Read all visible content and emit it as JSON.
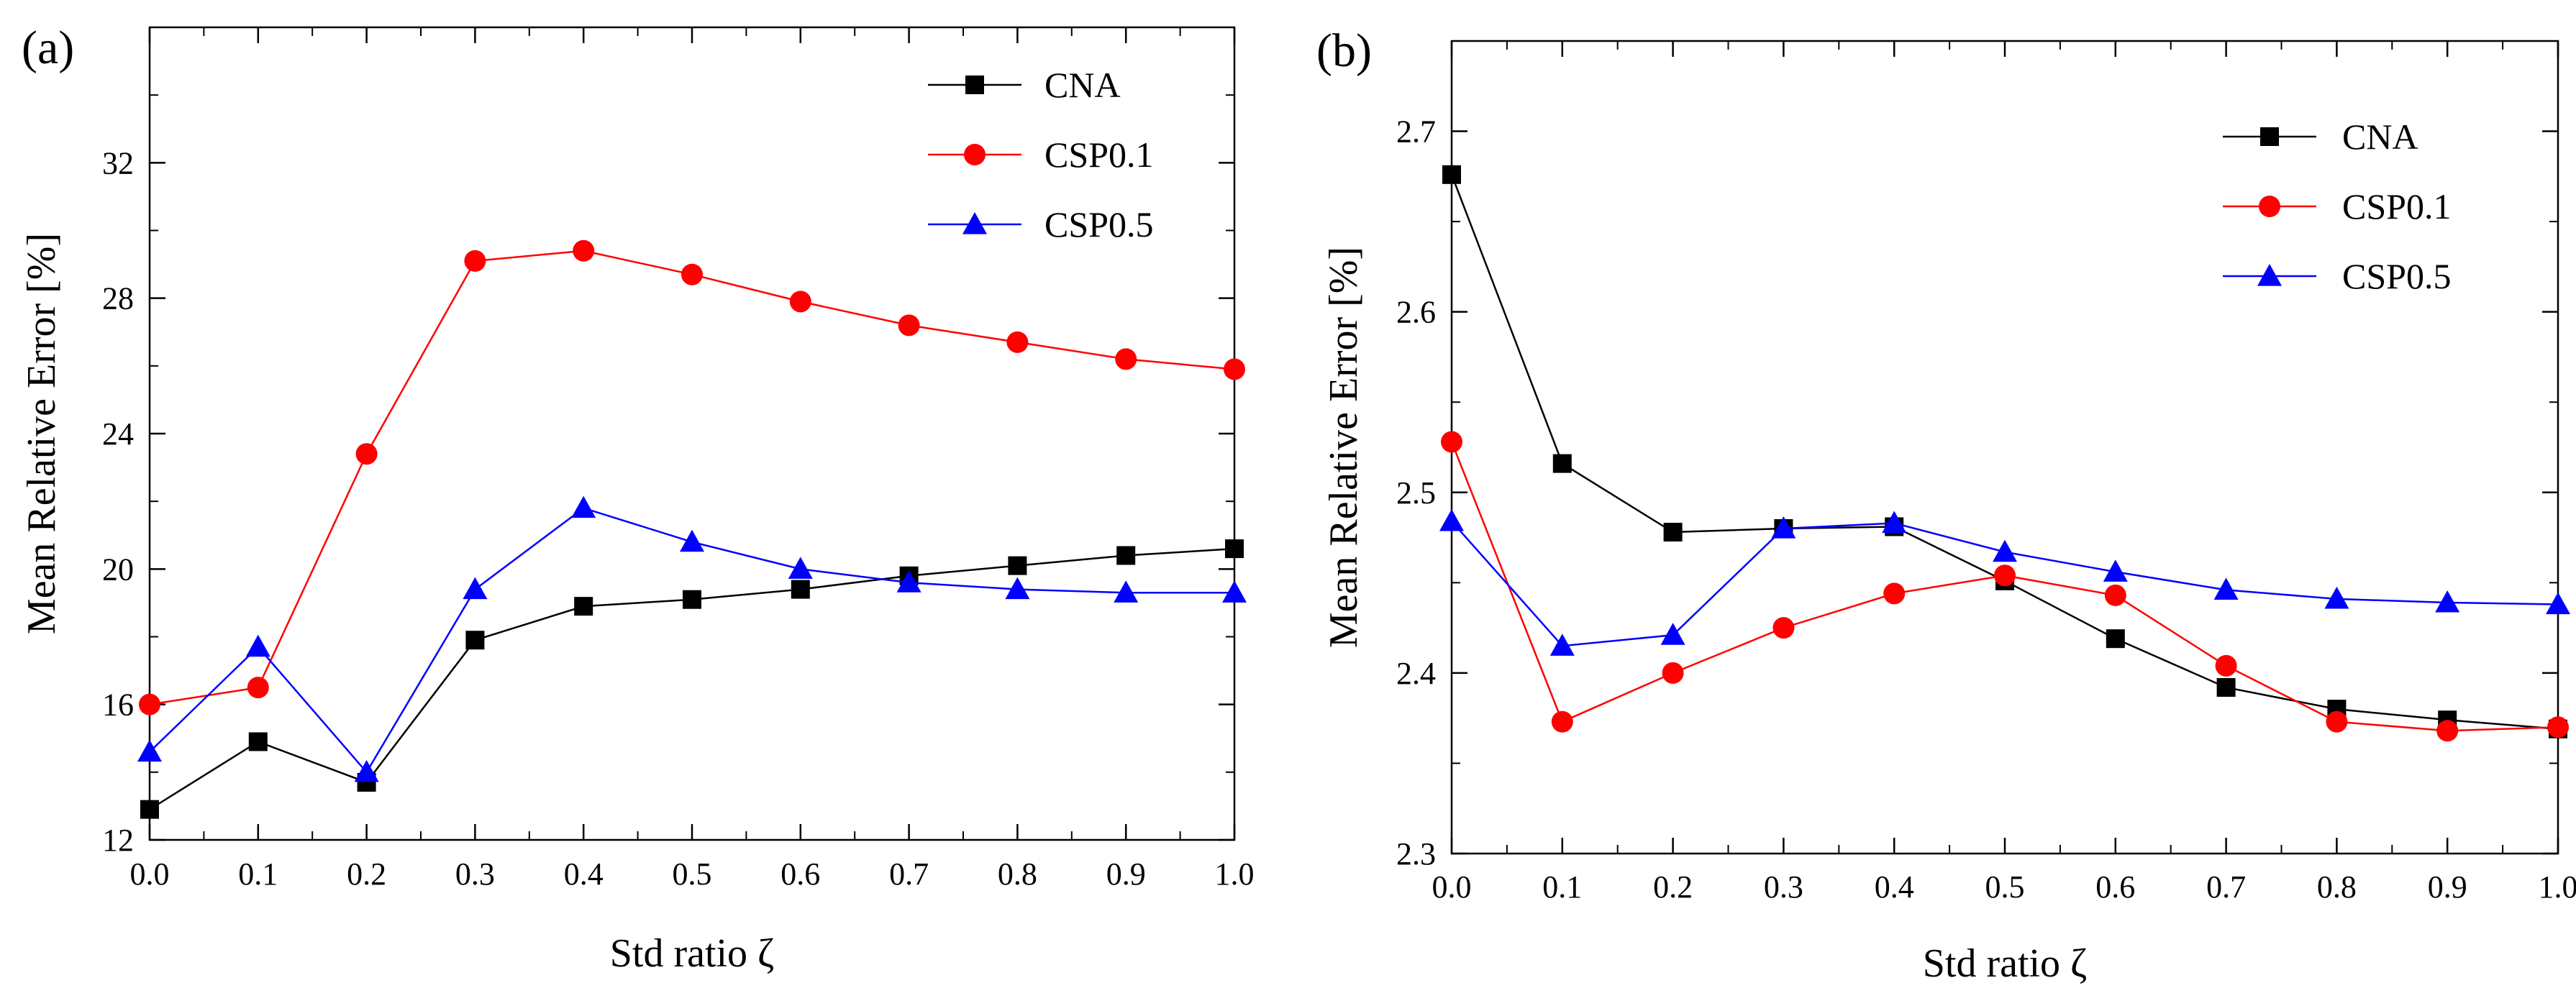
{
  "chart_data": [
    {
      "type": "line",
      "panel_label": "(a)",
      "xlabel": "Std ratio ζ",
      "ylabel": "Mean Relative Error [%]",
      "xlim": [
        0.0,
        1.0
      ],
      "ylim": [
        12,
        36
      ],
      "xticks": [
        0.0,
        0.1,
        0.2,
        0.3,
        0.4,
        0.5,
        0.6,
        0.7,
        0.8,
        0.9,
        1.0
      ],
      "xtick_labels": [
        "0.0",
        "0.1",
        "0.2",
        "0.3",
        "0.4",
        "0.5",
        "0.6",
        "0.7",
        "0.8",
        "0.9",
        "1.0"
      ],
      "yticks": [
        12,
        16,
        20,
        24,
        28,
        32
      ],
      "ytick_labels": [
        "12",
        "16",
        "20",
        "24",
        "28",
        "32"
      ],
      "legend_position": "top-right",
      "x": [
        0.0,
        0.1,
        0.2,
        0.3,
        0.4,
        0.5,
        0.6,
        0.7,
        0.8,
        0.9,
        1.0
      ],
      "series": [
        {
          "name": "CNA",
          "color": "#000000",
          "marker": "square",
          "values": [
            12.9,
            14.9,
            13.7,
            17.9,
            18.9,
            19.1,
            19.4,
            19.8,
            20.1,
            20.4,
            20.6
          ]
        },
        {
          "name": "CSP0.1",
          "color": "#ff0000",
          "marker": "circle",
          "values": [
            16.0,
            16.5,
            23.4,
            29.1,
            29.4,
            28.7,
            27.9,
            27.2,
            26.7,
            26.2,
            25.9
          ]
        },
        {
          "name": "CSP0.5",
          "color": "#0000ff",
          "marker": "triangle",
          "values": [
            14.6,
            17.7,
            14.0,
            19.4,
            21.8,
            20.8,
            20.0,
            19.6,
            19.4,
            19.3,
            19.3
          ]
        }
      ]
    },
    {
      "type": "line",
      "panel_label": "(b)",
      "xlabel": "Std ratio ζ",
      "ylabel": "Mean Relative Error [%]",
      "xlim": [
        0.0,
        1.0
      ],
      "ylim": [
        2.3,
        2.75
      ],
      "xticks": [
        0.0,
        0.1,
        0.2,
        0.3,
        0.4,
        0.5,
        0.6,
        0.7,
        0.8,
        0.9,
        1.0
      ],
      "xtick_labels": [
        "0.0",
        "0.1",
        "0.2",
        "0.3",
        "0.4",
        "0.5",
        "0.6",
        "0.7",
        "0.8",
        "0.9",
        "1.0"
      ],
      "yticks": [
        2.3,
        2.4,
        2.5,
        2.6,
        2.7
      ],
      "ytick_labels": [
        "2.3",
        "2.4",
        "2.5",
        "2.6",
        "2.7"
      ],
      "legend_position": "top-right",
      "x": [
        0.0,
        0.1,
        0.2,
        0.3,
        0.4,
        0.5,
        0.6,
        0.7,
        0.8,
        0.9,
        1.0
      ],
      "series": [
        {
          "name": "CNA",
          "color": "#000000",
          "marker": "square",
          "values": [
            2.676,
            2.516,
            2.478,
            2.48,
            2.481,
            2.451,
            2.419,
            2.392,
            2.38,
            2.374,
            2.369
          ]
        },
        {
          "name": "CSP0.1",
          "color": "#ff0000",
          "marker": "circle",
          "values": [
            2.528,
            2.373,
            2.4,
            2.425,
            2.444,
            2.454,
            2.443,
            2.404,
            2.373,
            2.368,
            2.37
          ]
        },
        {
          "name": "CSP0.5",
          "color": "#0000ff",
          "marker": "triangle",
          "values": [
            2.484,
            2.415,
            2.421,
            2.48,
            2.483,
            2.467,
            2.456,
            2.446,
            2.441,
            2.439,
            2.438
          ]
        }
      ]
    }
  ]
}
